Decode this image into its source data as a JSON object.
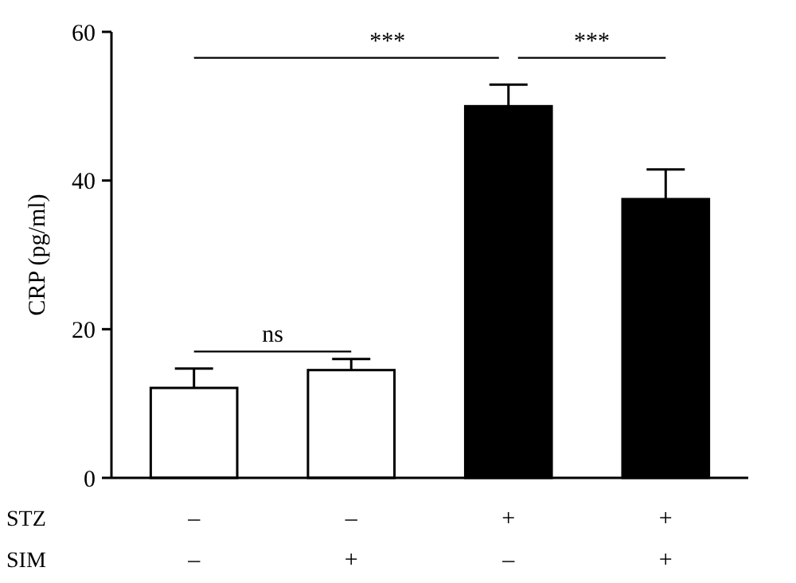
{
  "chart_data": {
    "type": "bar",
    "ylabel": "CRP (pg/ml)",
    "categories": [
      "–\n–",
      "–\n+",
      "+\n–",
      "+\n+"
    ],
    "values": [
      12.1,
      14.5,
      50,
      37.5
    ],
    "colors": [
      "#ffffff",
      "#ffffff",
      "#000000",
      "#000000"
    ],
    "errors": [
      [
        12.1,
        14.7
      ],
      [
        14.5,
        16.0
      ],
      [
        50,
        52.9
      ],
      [
        37.5,
        41.5
      ]
    ],
    "ylim": [
      0,
      60
    ],
    "yticks": [
      0,
      20,
      40,
      60
    ],
    "grid": false,
    "annotations": [
      "STZ",
      "SIM",
      "ns",
      "***",
      "***"
    ]
  }
}
